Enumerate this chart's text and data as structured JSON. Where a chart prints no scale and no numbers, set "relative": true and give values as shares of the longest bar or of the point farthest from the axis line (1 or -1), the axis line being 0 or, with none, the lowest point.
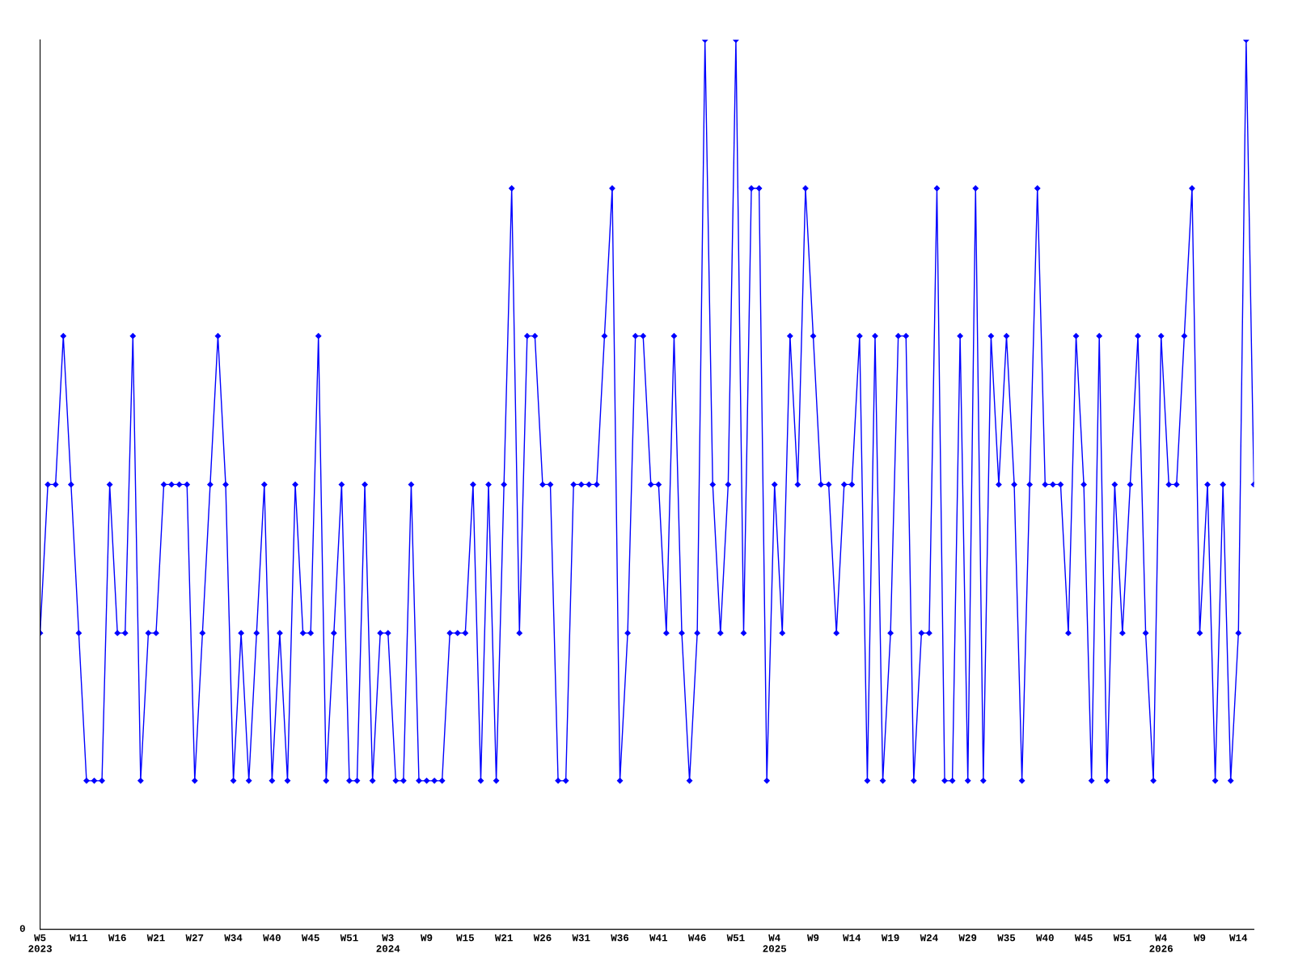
{
  "chart_data": {
    "type": "line",
    "relative": true,
    "color": "#0000ff",
    "marker": "diamond",
    "line_style": "solid",
    "grid": false,
    "legend": false,
    "annotations": [
      "0"
    ],
    "categories": [
      "W5\n2023",
      null,
      null,
      null,
      null,
      "W11",
      null,
      null,
      null,
      null,
      "W16",
      null,
      null,
      null,
      null,
      "W21",
      null,
      null,
      null,
      null,
      "W27",
      null,
      null,
      null,
      null,
      "W34",
      null,
      null,
      null,
      null,
      "W40",
      null,
      null,
      null,
      null,
      "W45",
      null,
      null,
      null,
      null,
      "W51",
      null,
      null,
      null,
      null,
      "W3\n2024",
      null,
      null,
      null,
      null,
      "W9",
      null,
      null,
      null,
      null,
      "W15",
      null,
      null,
      null,
      null,
      "W21",
      null,
      null,
      null,
      null,
      "W26",
      null,
      null,
      null,
      null,
      "W31",
      null,
      null,
      null,
      null,
      "W36",
      null,
      null,
      null,
      null,
      "W41",
      null,
      null,
      null,
      null,
      "W46",
      null,
      null,
      null,
      null,
      "W51",
      null,
      null,
      null,
      null,
      "W4\n2025",
      null,
      null,
      null,
      null,
      "W9",
      null,
      null,
      null,
      null,
      "W14",
      null,
      null,
      null,
      null,
      "W19",
      null,
      null,
      null,
      null,
      "W24",
      null,
      null,
      null,
      null,
      "W29",
      null,
      null,
      null,
      null,
      "W35",
      null,
      null,
      null,
      null,
      "W40",
      null,
      null,
      null,
      null,
      "W45",
      null,
      null,
      null,
      null,
      "W51",
      null,
      null,
      null,
      null,
      "W4\n2026",
      null,
      null,
      null,
      null,
      "W9",
      null,
      null,
      null,
      null,
      "W14",
      null,
      null
    ],
    "values": [
      0.333,
      0.5,
      0.5,
      0.667,
      0.5,
      0.333,
      0.167,
      0.167,
      0.167,
      0.5,
      0.333,
      0.333,
      0.667,
      0.167,
      0.333,
      0.333,
      0.5,
      0.5,
      0.5,
      0.5,
      0.167,
      0.333,
      0.5,
      0.667,
      0.5,
      0.167,
      0.333,
      0.167,
      0.333,
      0.5,
      0.167,
      0.333,
      0.167,
      0.5,
      0.333,
      0.333,
      0.667,
      0.167,
      0.333,
      0.5,
      0.167,
      0.167,
      0.5,
      0.167,
      0.333,
      0.333,
      0.167,
      0.167,
      0.5,
      0.167,
      0.167,
      0.167,
      0.167,
      0.333,
      0.333,
      0.333,
      0.5,
      0.167,
      0.5,
      0.167,
      0.5,
      0.833,
      0.333,
      0.667,
      0.667,
      0.5,
      0.5,
      0.167,
      0.167,
      0.5,
      0.5,
      0.5,
      0.5,
      0.667,
      0.833,
      0.167,
      0.333,
      0.667,
      0.667,
      0.5,
      0.5,
      0.333,
      0.667,
      0.333,
      0.167,
      0.333,
      1,
      0.5,
      0.333,
      0.5,
      1,
      0.333,
      0.833,
      0.833,
      0.167,
      0.5,
      0.333,
      0.667,
      0.5,
      0.833,
      0.667,
      0.5,
      0.5,
      0.333,
      0.5,
      0.5,
      0.667,
      0.167,
      0.667,
      0.167,
      0.333,
      0.667,
      0.667,
      0.167,
      0.333,
      0.333,
      0.833,
      0.167,
      0.167,
      0.667,
      0.167,
      0.833,
      0.167,
      0.667,
      0.5,
      0.667,
      0.5,
      0.167,
      0.5,
      0.833,
      0.5,
      0.5,
      0.5,
      0.333,
      0.667,
      0.5,
      0.167,
      0.667,
      0.167,
      0.5,
      0.333,
      0.5,
      0.667,
      0.333,
      0.167,
      0.667,
      0.5,
      0.5,
      0.667,
      0.833,
      0.333,
      0.5,
      0.167,
      0.5,
      0.167,
      0.333,
      1,
      0.5
    ]
  }
}
